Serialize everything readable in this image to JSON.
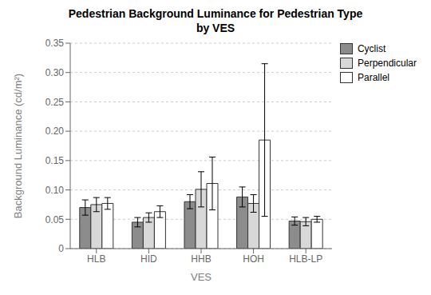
{
  "chart_data": {
    "type": "bar",
    "title": "Pedestrian Background Luminance for Pedestrian Type\nby VES",
    "xlabel": "VES",
    "ylabel": "Background Luminance (cd/m²)",
    "categories": [
      "HLB",
      "HID",
      "HHB",
      "HOH",
      "HLB-LP"
    ],
    "series": [
      {
        "name": "Cyclist",
        "color": "#8c8c8c",
        "values": [
          0.07,
          0.045,
          0.08,
          0.088,
          0.047
        ],
        "errors": [
          0.013,
          0.008,
          0.012,
          0.017,
          0.007
        ]
      },
      {
        "name": "Perpendicular",
        "color": "#d8d8d8",
        "values": [
          0.075,
          0.053,
          0.101,
          0.077,
          0.046
        ],
        "errors": [
          0.012,
          0.008,
          0.03,
          0.015,
          0.007
        ]
      },
      {
        "name": "Parallel",
        "color": "#ffffff",
        "values": [
          0.077,
          0.063,
          0.111,
          0.185,
          0.05
        ],
        "errors": [
          0.01,
          0.01,
          0.045,
          0.13,
          0.005
        ]
      }
    ],
    "ylim": [
      0,
      0.35
    ],
    "yticks": [
      0,
      0.05,
      {
        "value": 0.1,
        "label": "0.10"
      },
      0.15,
      {
        "value": 0.2,
        "label": "0.20"
      },
      0.25,
      {
        "value": 0.3,
        "label": "0.30"
      },
      0.35
    ],
    "grid": true,
    "legend": "upper right"
  }
}
